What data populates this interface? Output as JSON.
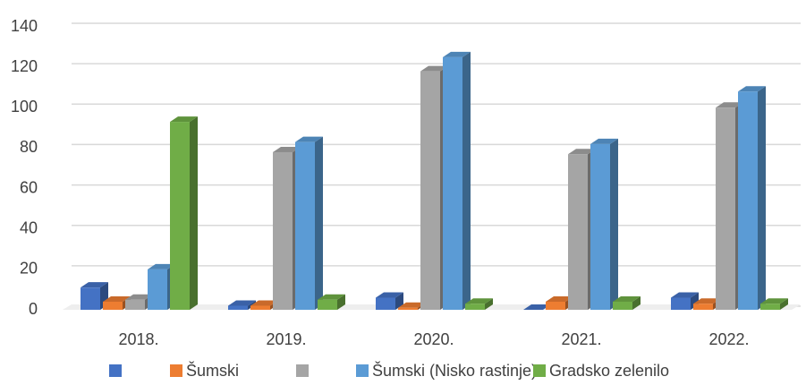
{
  "chart_data": {
    "type": "bar3d",
    "categories": [
      "2018.",
      "2019.",
      "2020.",
      "2021.",
      "2022."
    ],
    "series": [
      {
        "name": null,
        "color": "#4472c4",
        "values": [
          11,
          2,
          6,
          0,
          6
        ]
      },
      {
        "name": "Šumski",
        "color": "#ed7d31",
        "values": [
          4,
          2,
          1,
          4,
          3
        ]
      },
      {
        "name": null,
        "color": "#a5a5a5",
        "values": [
          5,
          78,
          118,
          77,
          100
        ]
      },
      {
        "name": "Šumski (Nisko rastinje)",
        "color": "#5b9bd5",
        "values": [
          20,
          83,
          125,
          82,
          108
        ]
      },
      {
        "name": "Gradsko zelenilo",
        "color": "#70ad47",
        "values": [
          93,
          5,
          3,
          4,
          3
        ]
      }
    ],
    "ylim": [
      0,
      140
    ],
    "yticks": [
      0,
      20,
      40,
      60,
      80,
      100,
      120,
      140
    ],
    "grid": true,
    "legend": "bottom"
  }
}
